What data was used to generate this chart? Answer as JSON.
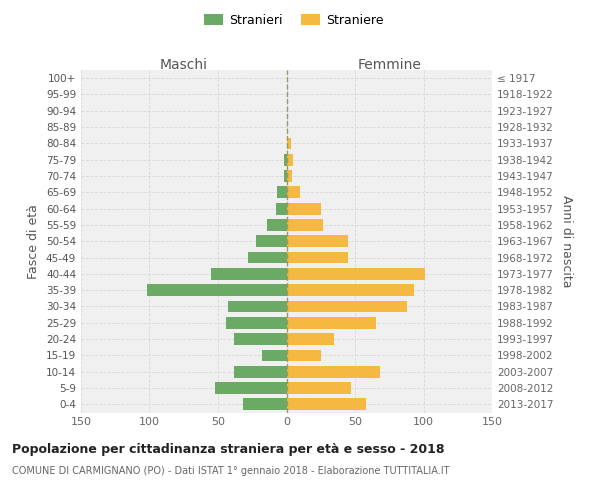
{
  "age_groups": [
    "0-4",
    "5-9",
    "10-14",
    "15-19",
    "20-24",
    "25-29",
    "30-34",
    "35-39",
    "40-44",
    "45-49",
    "50-54",
    "55-59",
    "60-64",
    "65-69",
    "70-74",
    "75-79",
    "80-84",
    "85-89",
    "90-94",
    "95-99",
    "100+"
  ],
  "birth_years": [
    "2013-2017",
    "2008-2012",
    "2003-2007",
    "1998-2002",
    "1993-1997",
    "1988-1992",
    "1983-1987",
    "1978-1982",
    "1973-1977",
    "1968-1972",
    "1963-1967",
    "1958-1962",
    "1953-1957",
    "1948-1952",
    "1943-1947",
    "1938-1942",
    "1933-1937",
    "1928-1932",
    "1923-1927",
    "1918-1922",
    "≤ 1917"
  ],
  "males": [
    32,
    52,
    38,
    18,
    38,
    44,
    43,
    102,
    55,
    28,
    22,
    14,
    8,
    7,
    2,
    2,
    0,
    0,
    0,
    0,
    0
  ],
  "females": [
    58,
    47,
    68,
    25,
    35,
    65,
    88,
    93,
    101,
    45,
    45,
    27,
    25,
    10,
    4,
    5,
    3,
    0,
    0,
    0,
    0
  ],
  "male_color": "#6aaa64",
  "female_color": "#f5b942",
  "background_color": "#f0f0f0",
  "grid_color": "#d8d8d8",
  "center_line_color": "#999966",
  "title": "Popolazione per cittadinanza straniera per età e sesso - 2018",
  "subtitle": "COMUNE DI CARMIGNANO (PO) - Dati ISTAT 1° gennaio 2018 - Elaborazione TUTTITALIA.IT",
  "header_left": "Maschi",
  "header_right": "Femmine",
  "ylabel_left": "Fasce di età",
  "ylabel_right": "Anni di nascita",
  "legend_male": "Stranieri",
  "legend_female": "Straniere",
  "xlim": 150
}
